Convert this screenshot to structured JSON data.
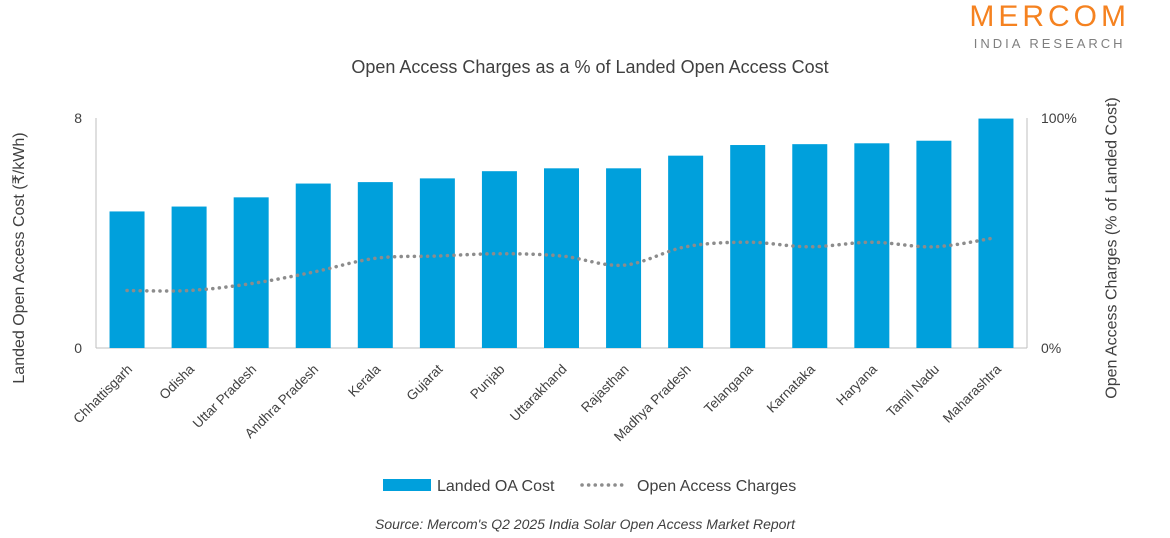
{
  "logo": {
    "main": "MERCOM",
    "sub": "INDIA RESEARCH"
  },
  "source": "Source: Mercom's Q2 2025  India Solar Open Access Market Report",
  "colors": {
    "bar": "#00a0dc",
    "line": "#8c8c8c",
    "brand": "#f58220",
    "axis": "#bfbfbf"
  },
  "chart_data": {
    "type": "bar",
    "title": "Open Access Charges as a % of Landed Open Access Cost",
    "ylabel": "Landed Open Access Cost (₹/kWh)",
    "ylabel_right": "Open Access Charges (% of Landed Cost)",
    "ylim": [
      0,
      8
    ],
    "ylim_right": [
      0,
      100
    ],
    "yticks": [
      "0",
      "8"
    ],
    "yticks_right": [
      "0%",
      "100%"
    ],
    "categories": [
      "Chhattisgarh",
      "Odisha",
      "Uttar Pradesh",
      "Andhra Pradesh",
      "Kerala",
      "Gujarat",
      "Punjab",
      "Uttarakhand",
      "Rajasthan",
      "Madhya Pradesh",
      "Telangana",
      "Karnataka",
      "Haryana",
      "Tamil Nadu",
      "Maharashtra"
    ],
    "series": [
      {
        "name": "Landed OA Cost",
        "type": "bar",
        "axis": "left",
        "values": [
          4.75,
          4.92,
          5.24,
          5.72,
          5.77,
          5.9,
          6.15,
          6.25,
          6.25,
          6.69,
          7.06,
          7.09,
          7.12,
          7.21,
          7.98
        ]
      },
      {
        "name": "Open Access Charges",
        "type": "line",
        "style": "dotted",
        "axis": "right",
        "values": [
          25,
          25,
          28,
          33,
          39,
          40,
          41,
          40,
          36,
          44,
          46,
          44,
          46,
          44,
          48
        ]
      }
    ],
    "legend_position": "bottom",
    "grid": false
  }
}
